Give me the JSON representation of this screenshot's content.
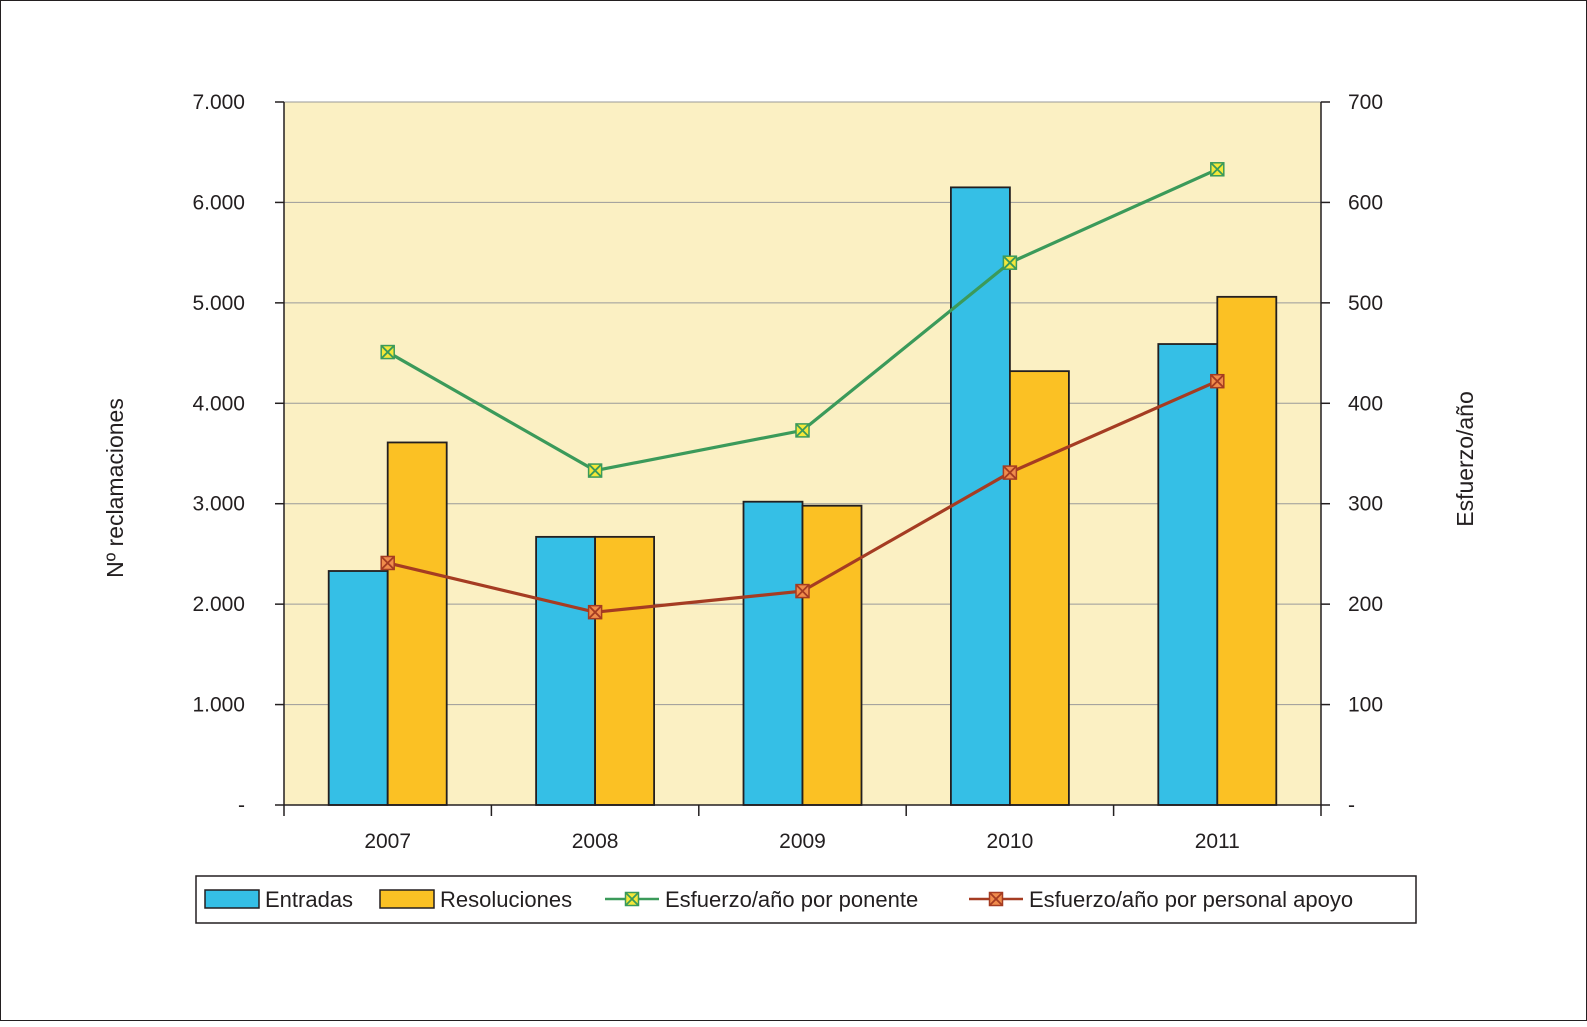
{
  "chart_data": {
    "type": "bar",
    "categories": [
      "2007",
      "2008",
      "2009",
      "2010",
      "2011"
    ],
    "series": [
      {
        "name": "Entradas",
        "type": "bar",
        "axis": "left",
        "values": [
          2330,
          2670,
          3020,
          6150,
          4590
        ],
        "color": "#35bfe6"
      },
      {
        "name": "Resoluciones",
        "type": "bar",
        "axis": "left",
        "values": [
          3610,
          2670,
          2980,
          4320,
          5060
        ],
        "color": "#fbc124"
      },
      {
        "name": "Esfuerzo/año por ponente",
        "type": "line",
        "axis": "right",
        "values": [
          451,
          333,
          373,
          540,
          633
        ],
        "color": "#3b9a5a",
        "marker_color": "#f5e83a"
      },
      {
        "name": "Esfuerzo/año por personal apoyo",
        "type": "line",
        "axis": "right",
        "values": [
          241,
          192,
          213,
          331,
          422
        ],
        "color": "#a53c22",
        "marker_color": "#f08c4c"
      }
    ],
    "ylabel": "Nº reclamaciones",
    "y2label": "Esfuerzo/año",
    "ylim": [
      0,
      7000
    ],
    "y2lim": [
      0,
      700
    ],
    "yticks": [
      "-",
      "1.000",
      "2.000",
      "3.000",
      "4.000",
      "5.000",
      "6.000",
      "7.000"
    ],
    "y2ticks": [
      "-",
      "100",
      "200",
      "300",
      "400",
      "500",
      "600",
      "700"
    ],
    "grid": true,
    "plot_background": "#fbf0c3",
    "legend_position": "bottom"
  }
}
